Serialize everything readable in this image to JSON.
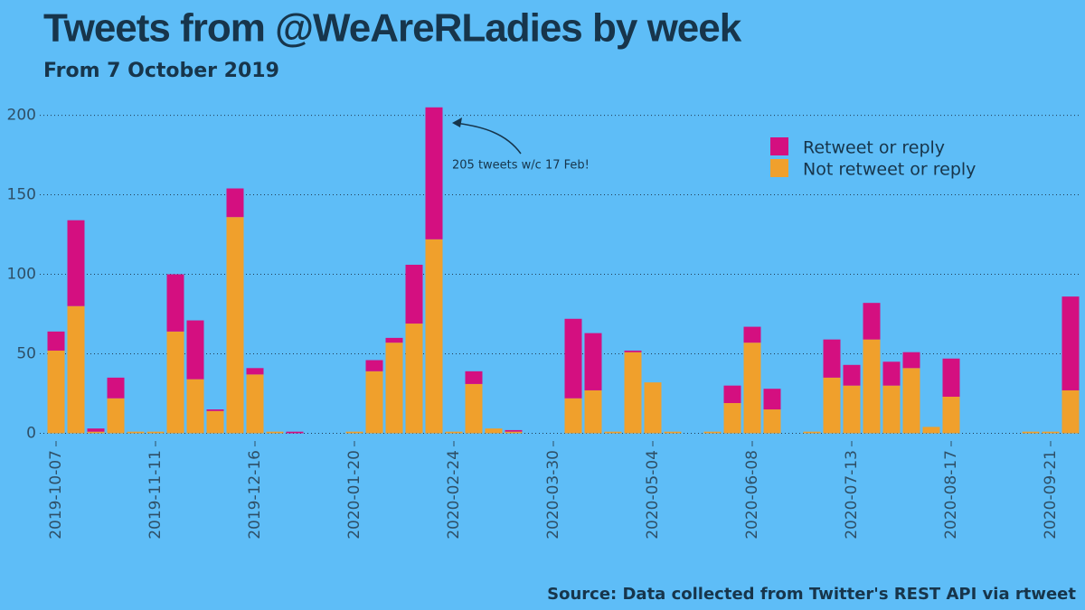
{
  "chart_data": {
    "type": "bar",
    "stacked": true,
    "title": "Tweets from @WeAreRLadies by week",
    "subtitle": "From 7 October 2019",
    "caption": "Source: Data collected from Twitter's REST API via rtweet",
    "annotation": "205 tweets w/c 17 Feb!",
    "categories": [
      "2019-10-07",
      null,
      null,
      null,
      null,
      "2019-11-11",
      null,
      null,
      null,
      null,
      "2019-12-16",
      null,
      null,
      null,
      null,
      "2020-01-20",
      null,
      null,
      null,
      null,
      "2020-02-24",
      null,
      null,
      null,
      null,
      "2020-03-30",
      null,
      null,
      null,
      null,
      "2020-05-04",
      null,
      null,
      null,
      null,
      "2020-06-08",
      null,
      null,
      null,
      null,
      "2020-07-13",
      null,
      null,
      null,
      null,
      "2020-08-17",
      null,
      null,
      null,
      null,
      "2020-09-21",
      null
    ],
    "series": [
      {
        "name": "Retweet or reply",
        "color": "#d40f80",
        "values": [
          12,
          54,
          2,
          13,
          0,
          0,
          36,
          37,
          1,
          18,
          4,
          0,
          1,
          0,
          0,
          0,
          7,
          3,
          37,
          83,
          0,
          8,
          0,
          1,
          0,
          0,
          50,
          36,
          0,
          1,
          0,
          0,
          0,
          0,
          11,
          10,
          13,
          0,
          0,
          24,
          13,
          23,
          15,
          10,
          0,
          24,
          0,
          0,
          0,
          0,
          0,
          59
        ]
      },
      {
        "name": "Not retweet or reply",
        "color": "#f0a02c",
        "values": [
          52,
          80,
          1,
          22,
          1,
          1,
          64,
          34,
          14,
          136,
          37,
          1,
          0,
          0,
          0,
          1,
          39,
          57,
          69,
          122,
          1,
          31,
          3,
          1,
          0,
          0,
          22,
          27,
          1,
          51,
          32,
          1,
          0,
          1,
          19,
          57,
          15,
          0,
          1,
          35,
          30,
          59,
          30,
          41,
          4,
          23,
          0,
          0,
          0,
          1,
          1,
          27
        ]
      }
    ],
    "ylim": [
      -6,
      210
    ],
    "yticks": [
      0,
      50,
      100,
      150,
      200
    ],
    "grid": true
  }
}
